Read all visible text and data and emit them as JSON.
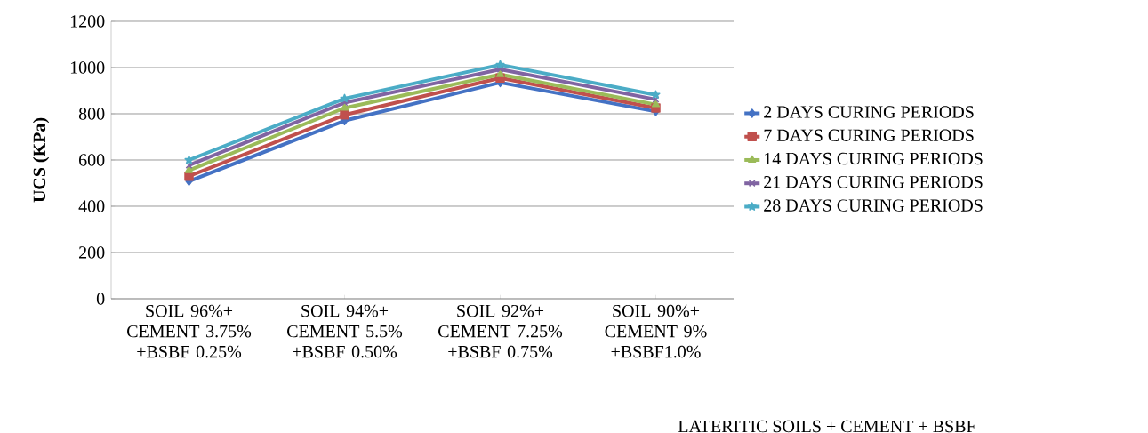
{
  "chart_data": {
    "type": "line",
    "xlabel": "LATERITIC SOILS + CEMENT + BSBF",
    "ylabel": "UCS (KPa)",
    "categories": [
      "SOIL 96%+ CEMENT 3.75% +BSBF 0.25%",
      "SOIL 94%+ CEMENT 5.5% +BSBF 0.50%",
      "SOIL 92%+ CEMENT 7.25% +BSBF 0.75%",
      "SOIL 90%+ CEMENT 9% +BSBF1.0%"
    ],
    "series": [
      {
        "name": "2 DAYS CURING PERIODS",
        "color": "#4472c4",
        "marker": "diamond",
        "values": [
          508,
          770,
          935,
          810
        ]
      },
      {
        "name": "7 DAYS CURING PERIODS",
        "color": "#c0504d",
        "marker": "square",
        "values": [
          530,
          795,
          955,
          825
        ]
      },
      {
        "name": "14 DAYS CURING PERIODS",
        "color": "#9bbb59",
        "marker": "triangle",
        "values": [
          555,
          825,
          970,
          840
        ]
      },
      {
        "name": "21 DAYS CURING PERIODS",
        "color": "#8064a2",
        "marker": "cross",
        "values": [
          577,
          848,
          992,
          862
        ]
      },
      {
        "name": "28 DAYS CURING PERIODS",
        "color": "#4bacc6",
        "marker": "star",
        "values": [
          600,
          866,
          1012,
          882
        ]
      }
    ],
    "ylim": [
      0,
      1200
    ],
    "yticks": [
      0,
      200,
      400,
      600,
      800,
      1000,
      1200
    ],
    "grid": "y",
    "legend": "right"
  }
}
